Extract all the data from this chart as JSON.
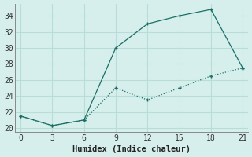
{
  "line1_x": [
    0,
    3,
    6,
    9,
    12,
    15,
    18,
    21
  ],
  "line1_y": [
    21.5,
    20.3,
    21.0,
    30.0,
    33.0,
    34.0,
    34.8,
    27.5
  ],
  "line2_x": [
    0,
    3,
    6,
    9,
    12,
    15,
    18,
    21
  ],
  "line2_y": [
    21.5,
    20.3,
    21.0,
    25.0,
    23.5,
    25.0,
    26.5,
    27.5
  ],
  "line_color": "#1a6e65",
  "bg_color": "#d6efec",
  "grid_color": "#b8ddd8",
  "xlabel": "Humidex (Indice chaleur)",
  "xlim": [
    -0.5,
    21.5
  ],
  "ylim": [
    19.5,
    35.5
  ],
  "xticks": [
    0,
    3,
    6,
    9,
    12,
    15,
    18,
    21
  ],
  "yticks": [
    20,
    22,
    24,
    26,
    28,
    30,
    32,
    34
  ],
  "xlabel_fontsize": 7.5,
  "tick_fontsize": 7.0
}
